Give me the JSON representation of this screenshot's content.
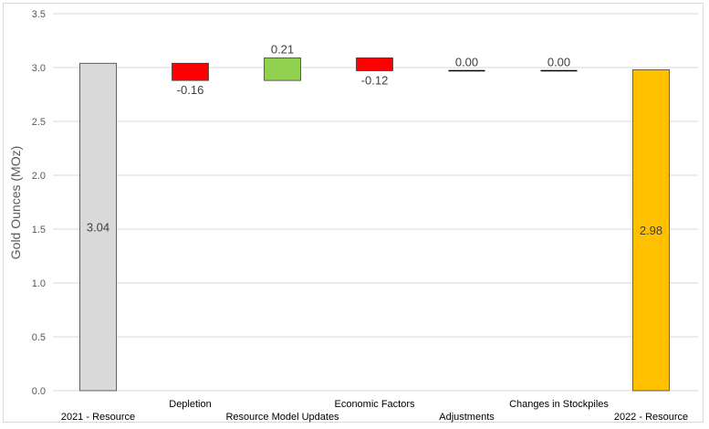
{
  "chart_data": {
    "type": "waterfall",
    "title": "",
    "ylabel": "Gold Ounces (MOz)",
    "xlabel": "",
    "ylim": [
      0,
      3.5
    ],
    "yticks": [
      "0.0",
      "0.5",
      "1.0",
      "1.5",
      "2.0",
      "2.5",
      "3.0",
      "3.5"
    ],
    "grid": true,
    "categories": [
      "2021 - Resource",
      "Depletion",
      "Resource Model Updates",
      "Economic Factors",
      "Adjustments",
      "Changes in Stockpiles",
      "2022 - Resource"
    ],
    "values": [
      3.04,
      -0.16,
      0.21,
      -0.12,
      0.0,
      0.0,
      2.98
    ],
    "labels": [
      "3.04",
      "-0.16",
      "0.21",
      "-0.12",
      "0.00",
      "0.00",
      "2.98"
    ],
    "kinds": [
      "total",
      "delta",
      "delta",
      "delta",
      "delta",
      "delta",
      "total"
    ],
    "colors": {
      "start_total": "#d9d9d9",
      "end_total": "#ffc000",
      "increase": "#92d050",
      "decrease": "#ff0000",
      "zero": "#000000",
      "edge": "#404040",
      "grid": "#d9d9d9"
    }
  }
}
